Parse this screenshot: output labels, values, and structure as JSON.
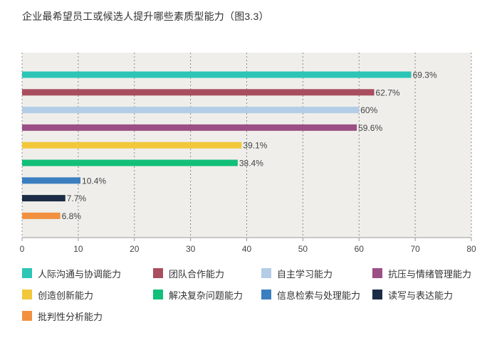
{
  "chart_data": {
    "type": "bar",
    "orientation": "horizontal",
    "title": "企业最希望员工或候选人提升哪些素质型能力（图3.3）",
    "categories": [
      "人际沟通与协调能力",
      "团队合作能力",
      "自主学习能力",
      "抗压与情绪管理能力",
      "创造创新能力",
      "解决复杂问题能力",
      "信息检索与处理能力",
      "读写与表达能力",
      "批判性分析能力"
    ],
    "values": [
      69.3,
      62.7,
      60,
      59.6,
      39.1,
      38.4,
      10.4,
      7.7,
      6.8
    ],
    "value_labels": [
      "69.3%",
      "62.7%",
      "60%",
      "59.6%",
      "39.1%",
      "38.4%",
      "10.4%",
      "7.7%",
      "6.8%"
    ],
    "colors": [
      "#2cc5b6",
      "#a84e5e",
      "#b4cde6",
      "#9c4f85",
      "#f2c83a",
      "#12bf78",
      "#3c7fc0",
      "#1d2c46",
      "#f19140"
    ],
    "xlim": [
      0,
      80
    ],
    "xticks": [
      "0",
      "10",
      "20",
      "30",
      "40",
      "50",
      "60",
      "70",
      "80"
    ],
    "xlabel": "",
    "ylabel": "",
    "grid": true,
    "legend_position": "bottom",
    "plot_background": "#efeeea"
  }
}
